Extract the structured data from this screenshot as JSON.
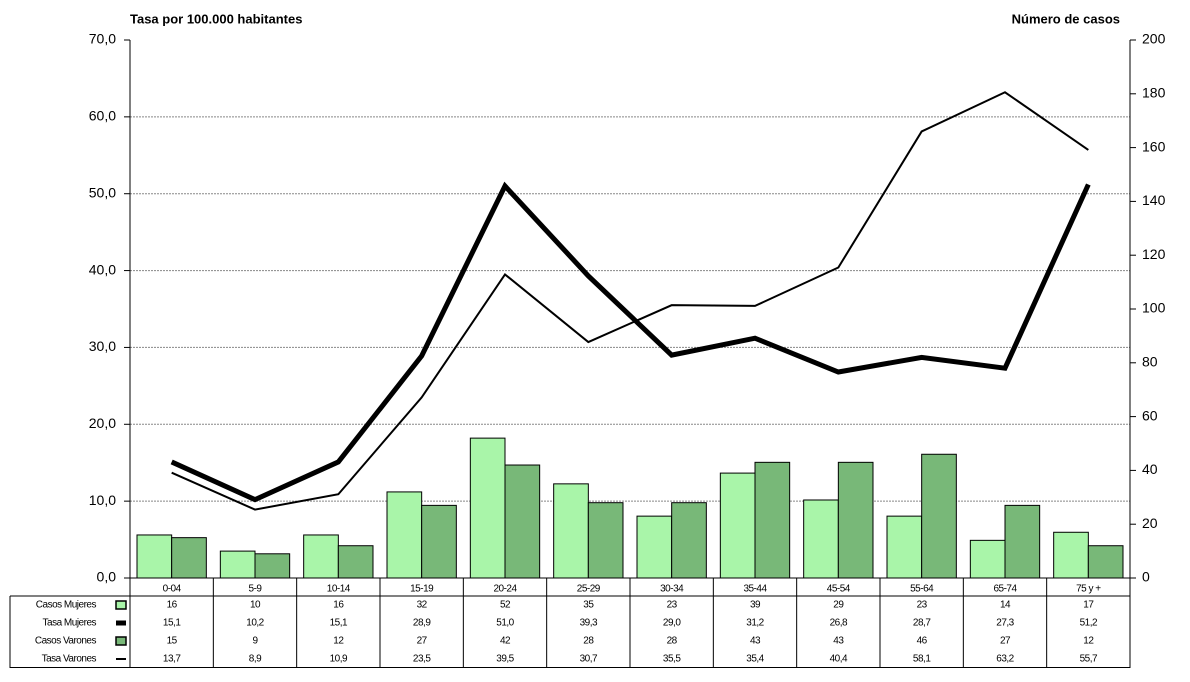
{
  "chart_data": {
    "type": "bar-line",
    "title": "Tasa por 100.000 habitantes",
    "y2_title": "Número de casos",
    "categories": [
      "0-04",
      "5-9",
      "10-14",
      "15-19",
      "20-24",
      "25-29",
      "30-34",
      "35-44",
      "45-54",
      "55-64",
      "65-74",
      "75 y +"
    ],
    "series": [
      {
        "name": "Casos Mujeres",
        "type": "bar",
        "axis": "y2",
        "color": "#a9f5a9",
        "values": [
          16,
          10,
          16,
          32,
          52,
          35,
          23,
          39,
          29,
          23,
          14,
          17
        ]
      },
      {
        "name": "Tasa Mujeres",
        "type": "line",
        "color": "#000000",
        "line_width": 5,
        "values": [
          15.1,
          10.2,
          15.1,
          28.9,
          51.0,
          39.3,
          29.0,
          31.2,
          26.8,
          28.7,
          27.3,
          51.2
        ],
        "value_labels": [
          "15,1",
          "10,2",
          "15,1",
          "28,9",
          "51,0",
          "39,3",
          "29,0",
          "31,2",
          "26,8",
          "28,7",
          "27,3",
          "51,2"
        ]
      },
      {
        "name": "Casos Varones",
        "type": "bar",
        "axis": "y2",
        "color": "#78b878",
        "values": [
          15,
          9,
          12,
          27,
          42,
          28,
          28,
          43,
          43,
          46,
          27,
          12
        ]
      },
      {
        "name": "Tasa Varones",
        "type": "line",
        "color": "#000000",
        "line_width": 2,
        "values": [
          13.7,
          8.9,
          10.9,
          23.5,
          39.5,
          30.7,
          35.5,
          35.4,
          40.4,
          58.1,
          63.2,
          55.7
        ],
        "value_labels": [
          "13,7",
          "8,9",
          "10,9",
          "23,5",
          "39,5",
          "30,7",
          "35,5",
          "35,4",
          "40,4",
          "58,1",
          "63,2",
          "55,7"
        ]
      }
    ],
    "ylim": [
      0,
      70
    ],
    "yticks": [
      {
        "value": 0,
        "label": "0,0"
      },
      {
        "value": 10,
        "label": "10,0"
      },
      {
        "value": 20,
        "label": "20,0"
      },
      {
        "value": 30,
        "label": "30,0"
      },
      {
        "value": 40,
        "label": "40,0"
      },
      {
        "value": 50,
        "label": "50,0"
      },
      {
        "value": 60,
        "label": "60,0"
      },
      {
        "value": 70,
        "label": "70,0"
      }
    ],
    "y2lim": [
      0,
      200
    ],
    "y2ticks": [
      0,
      20,
      40,
      60,
      80,
      100,
      120,
      140,
      160,
      180,
      200
    ],
    "grid": true
  }
}
